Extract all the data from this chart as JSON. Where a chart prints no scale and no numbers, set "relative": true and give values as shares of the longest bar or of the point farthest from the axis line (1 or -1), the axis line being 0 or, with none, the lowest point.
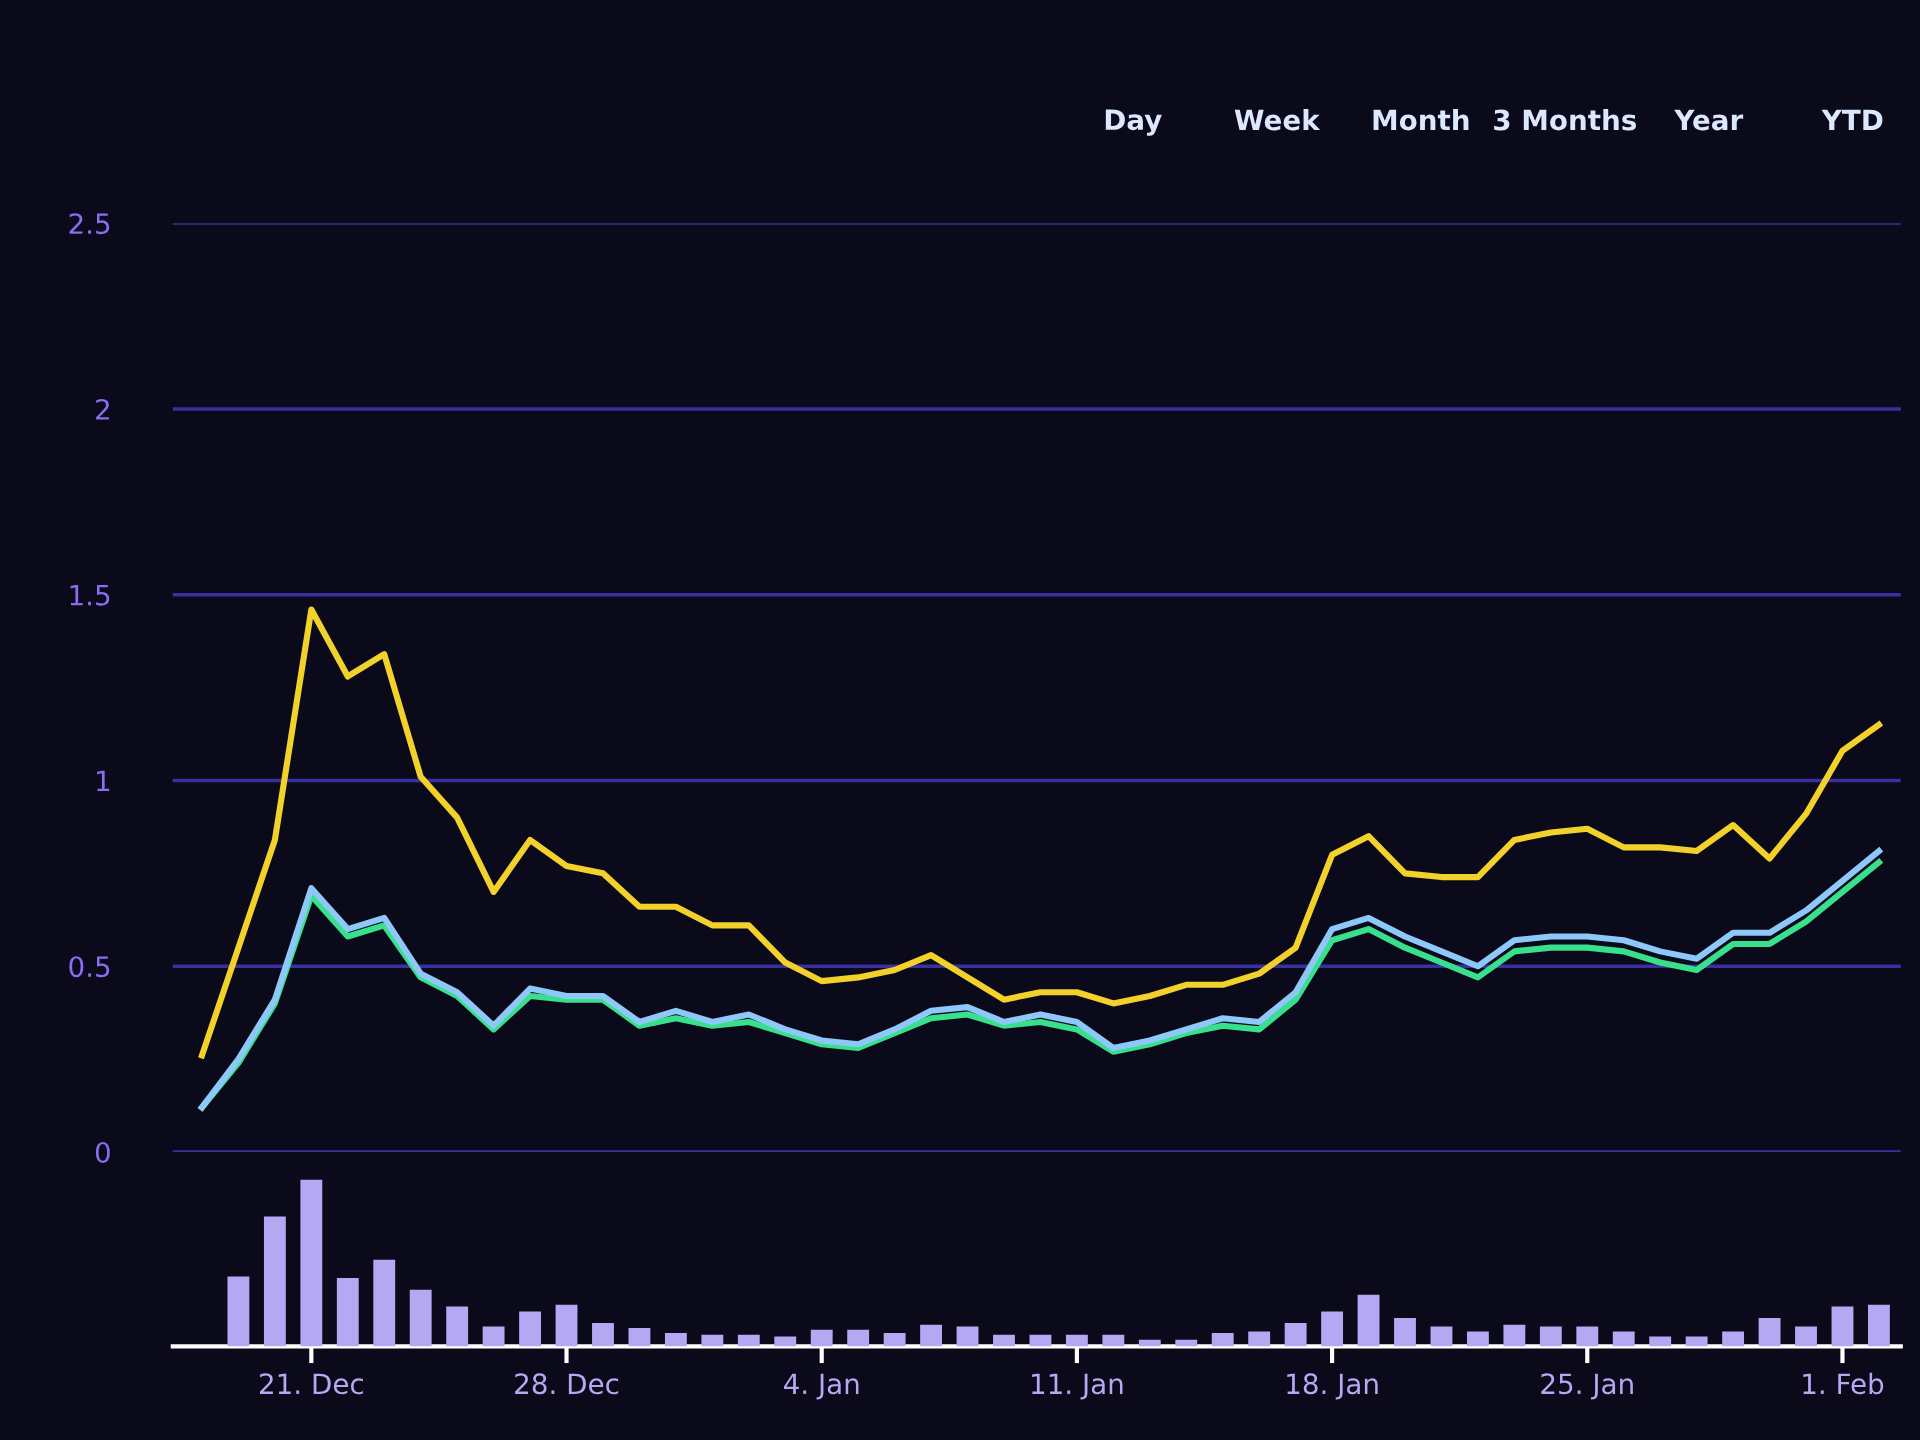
{
  "chart_data": [
    {
      "type": "line",
      "categories": [
        null,
        null,
        null,
        null,
        null,
        null,
        null,
        null,
        null,
        null,
        null,
        null,
        null,
        null,
        null,
        null,
        null,
        null,
        null,
        null,
        null,
        null,
        null,
        null,
        null,
        null,
        null,
        null,
        null,
        null,
        null,
        null,
        null,
        null,
        null,
        null,
        null,
        null,
        null,
        null,
        null,
        null,
        null,
        null,
        null,
        null,
        null
      ],
      "series": [
        {
          "color": "#f2d22a",
          "values": [
            0.26,
            0.55,
            0.84,
            1.46,
            1.28,
            1.34,
            1.01,
            0.9,
            0.7,
            0.84,
            0.77,
            0.75,
            0.66,
            0.66,
            0.61,
            0.61,
            0.51,
            0.46,
            0.47,
            0.49,
            0.53,
            0.47,
            0.41,
            0.43,
            0.43,
            0.4,
            0.42,
            0.45,
            0.45,
            0.48,
            0.55,
            0.8,
            0.85,
            0.75,
            0.74,
            0.74,
            0.84,
            0.86,
            0.87,
            0.82,
            0.82,
            0.81,
            0.88,
            0.79,
            0.91,
            1.08,
            1.15
          ]
        },
        {
          "color": "#8ec8f8",
          "values": [
            0.12,
            0.25,
            0.41,
            0.71,
            0.6,
            0.63,
            0.48,
            0.43,
            0.34,
            0.44,
            0.42,
            0.42,
            0.35,
            0.38,
            0.35,
            0.37,
            0.33,
            0.3,
            0.29,
            0.33,
            0.38,
            0.39,
            0.35,
            0.37,
            0.35,
            0.28,
            0.3,
            0.33,
            0.36,
            0.35,
            0.43,
            0.6,
            0.63,
            0.58,
            0.54,
            0.5,
            0.57,
            0.58,
            0.58,
            0.57,
            0.54,
            0.52,
            0.59,
            0.59,
            0.65,
            0.73,
            0.81
          ]
        },
        {
          "color": "#38e08c",
          "values": [
            0.12,
            0.24,
            0.4,
            0.69,
            0.58,
            0.61,
            0.47,
            0.42,
            0.33,
            0.42,
            0.41,
            0.41,
            0.34,
            0.36,
            0.34,
            0.35,
            0.32,
            0.29,
            0.28,
            0.32,
            0.36,
            0.37,
            0.34,
            0.35,
            0.33,
            0.27,
            0.29,
            0.32,
            0.34,
            0.33,
            0.41,
            0.57,
            0.6,
            0.55,
            0.51,
            0.47,
            0.54,
            0.55,
            0.55,
            0.54,
            0.51,
            0.49,
            0.56,
            0.56,
            0.62,
            0.7,
            0.78
          ]
        }
      ],
      "ylim": [
        0,
        2.5
      ],
      "yticks": [
        0,
        0.5,
        1,
        1.5,
        2,
        2.5
      ],
      "grid": "y",
      "tick_labels": "y",
      "annotations": [
        "Day",
        "Week",
        "Month",
        "3 Months",
        "Year",
        "YTD"
      ]
    },
    {
      "type": "bar",
      "categories": [
        null,
        null,
        null,
        "21. Dec",
        null,
        null,
        null,
        null,
        null,
        null,
        "28. Dec",
        null,
        null,
        null,
        null,
        null,
        null,
        "4. Jan",
        null,
        null,
        null,
        null,
        null,
        null,
        "11. Jan",
        null,
        null,
        null,
        null,
        null,
        null,
        "18. Jan",
        null,
        null,
        null,
        null,
        null,
        null,
        "25. Jan",
        null,
        null,
        null,
        null,
        null,
        null,
        "1. Feb",
        null
      ],
      "values": [
        null,
        0.42,
        0.78,
        1.0,
        0.41,
        0.52,
        0.34,
        0.24,
        0.12,
        0.21,
        0.25,
        0.14,
        0.11,
        0.08,
        0.07,
        0.07,
        0.06,
        0.1,
        0.1,
        0.08,
        0.13,
        0.12,
        0.07,
        0.07,
        0.07,
        0.07,
        0.04,
        0.04,
        0.08,
        0.09,
        0.14,
        0.21,
        0.31,
        0.17,
        0.12,
        0.09,
        0.13,
        0.12,
        0.12,
        0.09,
        0.06,
        0.06,
        0.09,
        0.17,
        0.12,
        0.24,
        0.25
      ],
      "color": "#b4a8f2",
      "relative": true,
      "tick_labels": "x"
    }
  ]
}
